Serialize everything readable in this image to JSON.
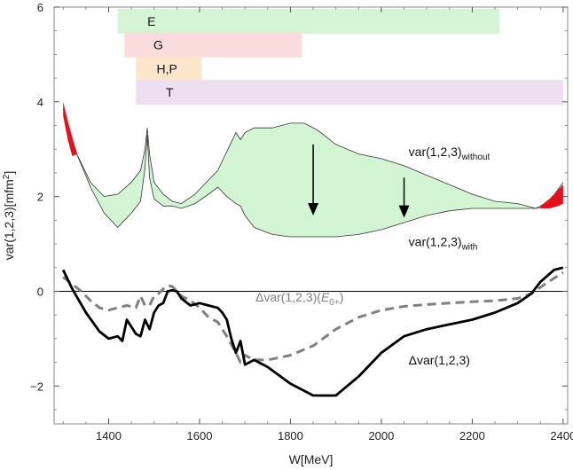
{
  "chart_data": {
    "type": "line",
    "title": "",
    "xlabel": "W[MeV]",
    "ylabel": "var(1,2,3)[mfm²]",
    "ylabel_parts": {
      "main": "var(1,2,3)[mfm",
      "sup": "2",
      "close": "]"
    },
    "xlim": [
      1280,
      2410
    ],
    "ylim": [
      -2.8,
      6.0
    ],
    "x_ticks": [
      1400,
      1600,
      1800,
      2000,
      2200,
      2400
    ],
    "y_ticks": [
      -2,
      0,
      2,
      4,
      6
    ],
    "y_tick_labels": [
      "−2",
      "0",
      "2",
      "4",
      "6"
    ],
    "bands": [
      {
        "label": "E",
        "x_start": 1420,
        "x_end": 2260,
        "y_center": 5.7,
        "color": "#d6f5d6"
      },
      {
        "label": "G",
        "x_start": 1435,
        "x_end": 1825,
        "y_center": 5.2,
        "color": "#fadcdc"
      },
      {
        "label": "H,P",
        "x_start": 1460,
        "x_end": 1605,
        "y_center": 4.7,
        "color": "#fce5cc"
      },
      {
        "label": "T",
        "x_start": 1460,
        "x_end": 2400,
        "y_center": 4.2,
        "color": "#eddff0"
      }
    ],
    "series": [
      {
        "name": "var(1,2,3)without",
        "label_main": "var(1,2,3)",
        "label_sub": "without",
        "x": [
          1300,
          1330,
          1360,
          1390,
          1420,
          1450,
          1470,
          1480,
          1485,
          1490,
          1500,
          1520,
          1540,
          1560,
          1590,
          1620,
          1640,
          1660,
          1680,
          1690,
          1700,
          1720,
          1760,
          1800,
          1830,
          1860,
          1900,
          1950,
          2000,
          2050,
          2100,
          2150,
          2200,
          2250,
          2300,
          2340,
          2370,
          2400
        ],
        "values": [
          3.85,
          2.9,
          2.3,
          2.0,
          2.05,
          2.3,
          2.55,
          3.0,
          3.45,
          2.9,
          2.3,
          2.05,
          1.9,
          1.85,
          2.05,
          2.35,
          2.55,
          2.95,
          3.35,
          3.2,
          3.35,
          3.45,
          3.45,
          3.55,
          3.55,
          3.4,
          3.1,
          2.9,
          2.8,
          2.65,
          2.45,
          2.25,
          2.05,
          1.9,
          1.85,
          1.75,
          1.9,
          2.3
        ]
      },
      {
        "name": "var(1,2,3)with",
        "label_main": "var(1,2,3)",
        "label_sub": "with",
        "x": [
          1300,
          1330,
          1360,
          1390,
          1420,
          1450,
          1470,
          1480,
          1485,
          1490,
          1500,
          1520,
          1540,
          1560,
          1590,
          1620,
          1640,
          1660,
          1680,
          1690,
          1700,
          1720,
          1760,
          1800,
          1830,
          1860,
          1900,
          1950,
          2000,
          2050,
          2100,
          2150,
          2200,
          2250,
          2300,
          2340,
          2370,
          2400
        ],
        "values": [
          3.85,
          2.9,
          2.2,
          1.65,
          1.35,
          1.65,
          1.9,
          2.6,
          3.3,
          2.4,
          1.95,
          1.8,
          1.8,
          1.75,
          1.85,
          2.05,
          2.2,
          2.0,
          1.85,
          1.8,
          1.6,
          1.35,
          1.2,
          1.15,
          1.15,
          1.15,
          1.15,
          1.2,
          1.3,
          1.45,
          1.6,
          1.7,
          1.75,
          1.75,
          1.75,
          1.75,
          1.8,
          2.0
        ]
      },
      {
        "name": "Δvar(1,2,3)",
        "style": "solid",
        "color": "#000000",
        "x": [
          1300,
          1320,
          1350,
          1380,
          1400,
          1420,
          1430,
          1440,
          1450,
          1460,
          1470,
          1480,
          1490,
          1500,
          1510,
          1520,
          1530,
          1540,
          1550,
          1560,
          1580,
          1600,
          1620,
          1640,
          1650,
          1660,
          1670,
          1680,
          1690,
          1700,
          1720,
          1750,
          1800,
          1850,
          1900,
          1950,
          2000,
          2050,
          2100,
          2150,
          2200,
          2250,
          2300,
          2330,
          2350,
          2380,
          2400
        ],
        "values": [
          0.45,
          0.05,
          -0.45,
          -0.85,
          -1.0,
          -0.95,
          -1.05,
          -0.6,
          -0.75,
          -0.9,
          -0.95,
          -0.6,
          -0.8,
          -0.45,
          -0.3,
          -0.25,
          0.0,
          0.02,
          0.0,
          -0.15,
          -0.3,
          -0.25,
          -0.3,
          -0.35,
          -0.45,
          -0.6,
          -1.0,
          -1.3,
          -1.05,
          -1.55,
          -1.45,
          -1.6,
          -1.95,
          -2.2,
          -2.2,
          -1.8,
          -1.3,
          -0.95,
          -0.8,
          -0.7,
          -0.6,
          -0.45,
          -0.25,
          -0.05,
          0.2,
          0.45,
          0.5
        ]
      },
      {
        "name": "Δvar(1,2,3)(E0+)",
        "label_main": "Δvar(1,2,3)(",
        "label_E": "E",
        "label_sub": "0+",
        "label_close": ")",
        "style": "dashed",
        "color": "#808080",
        "x": [
          1300,
          1320,
          1340,
          1360,
          1380,
          1400,
          1420,
          1440,
          1460,
          1470,
          1480,
          1490,
          1500,
          1510,
          1520,
          1530,
          1540,
          1560,
          1580,
          1600,
          1620,
          1640,
          1660,
          1680,
          1690,
          1700,
          1720,
          1750,
          1800,
          1850,
          1900,
          1950,
          2000,
          2050,
          2100,
          2150,
          2200,
          2250,
          2300,
          2330,
          2360,
          2400
        ],
        "values": [
          0.3,
          0.15,
          0.0,
          -0.2,
          -0.35,
          -0.4,
          -0.35,
          -0.3,
          -0.35,
          -0.1,
          -0.3,
          -0.3,
          -0.1,
          -0.05,
          0.05,
          0.12,
          0.1,
          -0.1,
          -0.2,
          -0.35,
          -0.55,
          -0.65,
          -0.95,
          -1.3,
          -1.5,
          -1.35,
          -1.45,
          -1.45,
          -1.35,
          -1.15,
          -0.8,
          -0.55,
          -0.4,
          -0.32,
          -0.28,
          -0.25,
          -0.22,
          -0.2,
          -0.15,
          -0.05,
          0.15,
          0.4
        ]
      }
    ],
    "red_regions": [
      {
        "x": [
          1300,
          1310,
          1320,
          1330,
          1320,
          1310,
          1300
        ],
        "values": [
          4.0,
          3.6,
          3.25,
          2.9,
          2.85,
          3.2,
          3.7
        ]
      },
      {
        "x": [
          2350,
          2370,
          2390,
          2400,
          2400,
          2390,
          2370,
          2350
        ],
        "values": [
          1.8,
          1.95,
          2.15,
          2.25,
          1.85,
          1.8,
          1.75,
          1.75
        ]
      }
    ],
    "arrows": [
      {
        "x": 1850,
        "from": 3.1,
        "to": 1.6
      },
      {
        "x": 2050,
        "from": 2.4,
        "to": 1.55
      }
    ],
    "annotations": {
      "without": {
        "x": 2060,
        "y": 2.85
      },
      "with": {
        "x": 2060,
        "y": 0.95
      },
      "delta_e0": {
        "x": 1820,
        "y": -0.22
      },
      "delta": {
        "x": 2060,
        "y": -1.55
      }
    },
    "colors": {
      "band_fill": "#d4f5d4",
      "red": "#e0141e",
      "solid": "#000000",
      "dashed": "#808080"
    }
  }
}
